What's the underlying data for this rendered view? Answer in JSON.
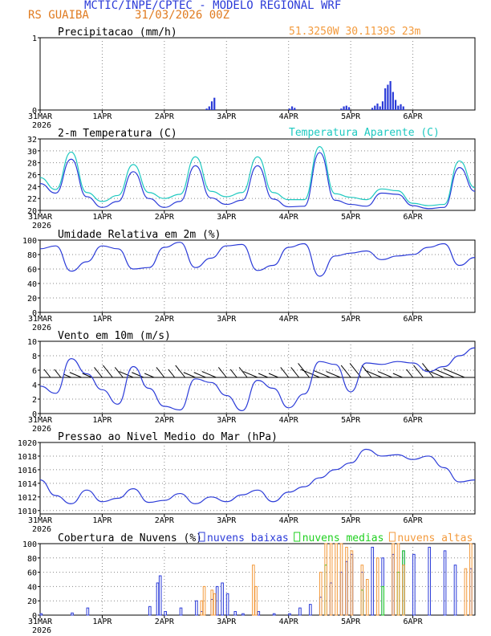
{
  "header": {
    "title": "MCTIC/INPE/CPTEC - MODELO REGIONAL WRF",
    "station": "RS GUAIBA",
    "run": "31/03/2026 00Z",
    "coords": "51.3250W 30.1139S 23m"
  },
  "colors": {
    "blue": "#2b3bd8",
    "cyan": "#1ec9c0",
    "orange": "#f39a3c",
    "green": "#1fd01f",
    "black": "#000000",
    "grid": "#888888"
  },
  "x_axis": {
    "ticks": [
      "31MAR",
      "1APR",
      "2APR",
      "3APR",
      "4APR",
      "5APR",
      "6APR"
    ],
    "year": "2026"
  },
  "chart_data": [
    {
      "id": "precip",
      "type": "bar",
      "title": "Precipitacao (mm/h)",
      "xunit": "hours since 2026-03-31 00Z",
      "ylim": [
        0,
        1
      ],
      "yticks": [
        0,
        1
      ],
      "series": [
        {
          "name": "Precipitacao",
          "color": "#2b3bd8",
          "x": [
            64,
            65,
            66,
            67,
            96,
            97,
            98,
            116,
            117,
            118,
            119,
            128,
            129,
            130,
            131,
            132,
            133,
            134,
            135,
            136,
            137,
            138,
            139,
            140
          ],
          "values": [
            0.02,
            0.05,
            0.12,
            0.17,
            0.02,
            0.05,
            0.03,
            0.02,
            0.05,
            0.06,
            0.04,
            0.03,
            0.06,
            0.09,
            0.05,
            0.12,
            0.3,
            0.35,
            0.4,
            0.25,
            0.14,
            0.06,
            0.08,
            0.05
          ]
        }
      ]
    },
    {
      "id": "temperature",
      "type": "line",
      "title": "2-m Temperatura (C)",
      "legend": "Temperatura Aparente (C)",
      "ylim": [
        20,
        32
      ],
      "yticks": [
        20,
        22,
        24,
        26,
        28,
        30,
        32
      ],
      "series": [
        {
          "name": "2-m Temperatura (C)",
          "color": "#2b3bd8",
          "x": [
            0,
            6,
            12,
            18,
            24,
            30,
            36,
            42,
            48,
            54,
            60,
            66,
            72,
            78,
            84,
            90,
            96,
            102,
            108,
            114,
            120,
            126,
            132,
            138,
            144,
            150,
            156,
            162,
            168
          ],
          "values": [
            24.5,
            22.9,
            28.6,
            22.3,
            20.5,
            21.5,
            26.5,
            22.0,
            20.5,
            21.5,
            27.5,
            22.1,
            21.0,
            21.7,
            27.5,
            21.9,
            20.6,
            20.7,
            29.7,
            21.7,
            21.0,
            20.7,
            22.9,
            22.7,
            20.8,
            20.3,
            20.5,
            27.2,
            23.2
          ]
        },
        {
          "name": "Temperatura Aparente (C)",
          "color": "#1ec9c0",
          "x": [
            0,
            6,
            12,
            18,
            24,
            30,
            36,
            42,
            48,
            54,
            60,
            66,
            72,
            78,
            84,
            90,
            96,
            102,
            108,
            114,
            120,
            126,
            132,
            138,
            144,
            150,
            156,
            162,
            168
          ],
          "values": [
            25.5,
            23.5,
            29.8,
            23.0,
            21.5,
            22.5,
            27.7,
            23.0,
            22.0,
            22.7,
            29.0,
            23.2,
            22.3,
            23.0,
            29.0,
            23.0,
            21.8,
            21.8,
            30.7,
            22.8,
            22.2,
            21.8,
            23.6,
            23.3,
            21.2,
            20.8,
            21.0,
            28.3,
            23.8
          ]
        }
      ]
    },
    {
      "id": "humidity",
      "type": "line",
      "title": "Umidade Relativa em 2m (%)",
      "ylim": [
        0,
        100
      ],
      "yticks": [
        0,
        20,
        40,
        60,
        80,
        100
      ],
      "series": [
        {
          "name": "Umidade Relativa",
          "color": "#2b3bd8",
          "x": [
            0,
            6,
            12,
            18,
            24,
            30,
            36,
            42,
            48,
            54,
            60,
            66,
            72,
            78,
            84,
            90,
            96,
            102,
            108,
            114,
            120,
            126,
            132,
            138,
            144,
            150,
            156,
            162,
            168
          ],
          "values": [
            88,
            92,
            57,
            70,
            92,
            88,
            60,
            62,
            90,
            97,
            62,
            75,
            92,
            94,
            58,
            65,
            90,
            95,
            50,
            78,
            82,
            85,
            73,
            78,
            80,
            90,
            95,
            65,
            76
          ]
        }
      ]
    },
    {
      "id": "wind",
      "type": "line",
      "title": "Vento em 10m (m/s)",
      "ylim": [
        0,
        10
      ],
      "yticks": [
        0,
        2,
        4,
        6,
        8,
        10
      ],
      "series": [
        {
          "name": "Vento em 10m",
          "color": "#2b3bd8",
          "x": [
            0,
            6,
            12,
            18,
            24,
            30,
            36,
            42,
            48,
            54,
            60,
            66,
            72,
            78,
            84,
            90,
            96,
            102,
            108,
            114,
            120,
            126,
            132,
            138,
            144,
            150,
            156,
            162,
            168
          ],
          "values": [
            3.8,
            2.8,
            7.6,
            5.5,
            3.3,
            1.3,
            6.5,
            3.5,
            1.0,
            0.5,
            4.8,
            4.3,
            2.5,
            0.4,
            4.6,
            3.5,
            0.8,
            2.7,
            7.2,
            6.8,
            3.0,
            7.0,
            6.8,
            7.2,
            7.0,
            5.8,
            6.5,
            8.0,
            9.1
          ]
        }
      ]
    },
    {
      "id": "pressure",
      "type": "line",
      "title": "Pressao ao Nivel Medio do Mar (hPa)",
      "ylim": [
        1009.5,
        1020
      ],
      "yticks": [
        1010,
        1012,
        1014,
        1016,
        1018,
        1020
      ],
      "series": [
        {
          "name": "Pressao",
          "color": "#2b3bd8",
          "x": [
            0,
            6,
            12,
            18,
            24,
            30,
            36,
            42,
            48,
            54,
            60,
            66,
            72,
            78,
            84,
            90,
            96,
            102,
            108,
            114,
            120,
            126,
            132,
            138,
            144,
            150,
            156,
            162,
            168
          ],
          "values": [
            1014.5,
            1012.2,
            1011.0,
            1013.0,
            1011.3,
            1011.8,
            1013.2,
            1011.2,
            1011.5,
            1012.5,
            1011.0,
            1012.0,
            1011.3,
            1012.3,
            1013.0,
            1011.3,
            1012.7,
            1013.5,
            1014.8,
            1016.0,
            1017.0,
            1019.0,
            1018.0,
            1018.2,
            1017.5,
            1018.0,
            1016.3,
            1014.2,
            1014.5
          ]
        }
      ]
    },
    {
      "id": "clouds",
      "type": "bar",
      "title": "Cobertura de Nuvens (%)",
      "ylim": [
        0,
        100
      ],
      "yticks": [
        0,
        20,
        40,
        60,
        80,
        100
      ],
      "series": [
        {
          "name": "nuvens baixas",
          "color": "#2b3bd8",
          "x": [
            0,
            12,
            18,
            42,
            45,
            46,
            48,
            54,
            60,
            62,
            66,
            68,
            70,
            72,
            75,
            78,
            84,
            90,
            96,
            100,
            104,
            108,
            112,
            116,
            118,
            120,
            124,
            128,
            132,
            136,
            140,
            144,
            150,
            156,
            160,
            166
          ],
          "values": [
            2,
            3,
            10,
            12,
            45,
            55,
            5,
            10,
            20,
            5,
            22,
            40,
            45,
            30,
            5,
            2,
            5,
            2,
            2,
            10,
            15,
            25,
            45,
            60,
            75,
            85,
            60,
            95,
            80,
            85,
            90,
            85,
            95,
            90,
            70,
            65
          ]
        },
        {
          "name": "nuvens medias",
          "color": "#1fd01f",
          "x": [
            110,
            124,
            132,
            138,
            140
          ],
          "values": [
            70,
            35,
            40,
            60,
            90
          ]
        },
        {
          "name": "nuvens altas",
          "color": "#f39a3c",
          "x": [
            62,
            63,
            66,
            67,
            82,
            83,
            108,
            110,
            112,
            114,
            116,
            118,
            120,
            124,
            126,
            130,
            136,
            138,
            140,
            164,
            166
          ],
          "values": [
            20,
            40,
            35,
            30,
            70,
            40,
            60,
            100,
            100,
            100,
            100,
            95,
            90,
            70,
            50,
            80,
            100,
            100,
            70,
            65,
            100
          ]
        }
      ]
    }
  ]
}
